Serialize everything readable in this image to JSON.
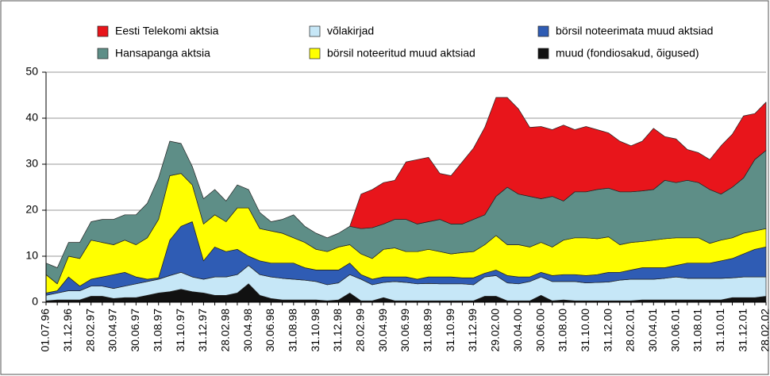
{
  "chart_data": {
    "type": "stacked_area",
    "categories": [
      "01.07.96",
      null,
      "31.12.96",
      null,
      "28.02.97",
      null,
      "30.04.97",
      null,
      "30.06.97",
      null,
      "31.08.97",
      null,
      "31.10.97",
      null,
      "31.12.97",
      null,
      "28.02.98",
      null,
      "30.04.98",
      null,
      "30.06.98",
      null,
      "31.08.98",
      null,
      "31.10.98",
      null,
      "31.12.98",
      null,
      "28.02.99",
      null,
      "30.04.99",
      null,
      "30.06.99",
      null,
      "31.08.99",
      null,
      "31.10.99",
      null,
      "31.12.99",
      null,
      "29.02.00",
      null,
      "30.04.00",
      null,
      "30.06.00",
      null,
      "31.08.00",
      null,
      "31.10.00",
      null,
      "31.12.00",
      null,
      "28.02.01",
      null,
      "30.04.01",
      null,
      "30.06.01",
      null,
      "31.08.01",
      null,
      "31.10.01",
      null,
      "31.12.01",
      null,
      "28.02.02"
    ],
    "series": [
      {
        "name": "muud (fondiosakud, õigused)",
        "color": "#111111",
        "values": [
          0.3,
          0.5,
          0.5,
          0.5,
          1.3,
          1.3,
          0.8,
          1,
          1,
          1.5,
          2,
          2.3,
          2.8,
          2.3,
          2,
          1.5,
          1.5,
          2,
          4,
          1.5,
          0.8,
          0.5,
          0.5,
          0.5,
          0.5,
          0.3,
          0.5,
          2,
          0.3,
          0.3,
          1,
          0.3,
          0.3,
          0.3,
          0.3,
          0.3,
          0.3,
          0.3,
          0.3,
          1.3,
          1.3,
          0.3,
          0.3,
          0.3,
          1.5,
          0.3,
          0.5,
          0.3,
          0.3,
          0.3,
          0.3,
          0.3,
          0.3,
          0.5,
          0.5,
          0.5,
          0.5,
          0.5,
          0.5,
          0.5,
          0.5,
          1,
          1,
          1,
          1.3
        ]
      },
      {
        "name": "võlakirjad",
        "color": "#c6e7f7",
        "values": [
          1.2,
          1.5,
          2,
          2,
          2.2,
          2.2,
          2.2,
          2.5,
          3,
          3,
          3,
          3.5,
          3.7,
          3.2,
          3,
          4,
          4,
          4,
          4,
          4.5,
          4.7,
          4.7,
          4.5,
          4.3,
          4,
          3.5,
          3.7,
          4,
          4.7,
          3.5,
          3.3,
          4.2,
          4,
          3.7,
          3.8,
          3.7,
          3.7,
          3.7,
          3.5,
          4.2,
          4.5,
          3.9,
          3.7,
          4.2,
          4,
          4.2,
          4,
          4.2,
          3.9,
          4,
          4.1,
          4.5,
          4.7,
          4.5,
          4.5,
          4.7,
          5,
          4.7,
          4.7,
          4.7,
          4.7,
          4.3,
          4.5,
          4.5,
          4.2
        ]
      },
      {
        "name": "börsil noteerimata muud aktsiad",
        "color": "#2f5cb4",
        "values": [
          0.5,
          0.5,
          3,
          1,
          1.5,
          2,
          3,
          3,
          1.5,
          0.5,
          0.3,
          7.7,
          10,
          12,
          4,
          6.5,
          5.5,
          5.5,
          2,
          3,
          3,
          3.3,
          3.5,
          2.7,
          2.5,
          3.2,
          2.8,
          2.5,
          1,
          1.2,
          1.2,
          1,
          1.2,
          1,
          1.4,
          1.5,
          1.5,
          1.3,
          1.5,
          0.8,
          1.2,
          1.6,
          1.5,
          1,
          1,
          1.3,
          1.5,
          1.5,
          1.6,
          1.7,
          2.1,
          1.7,
          2,
          2.5,
          2.5,
          2.3,
          2.5,
          3.3,
          3.3,
          3.3,
          3.8,
          4.2,
          5,
          6,
          6.5
        ]
      },
      {
        "name": "börsil noteeritud muud aktsiad",
        "color": "#ffff00",
        "values": [
          4,
          1.5,
          4.5,
          6,
          8.5,
          7.5,
          6.5,
          7,
          7,
          9,
          12.7,
          14,
          11.5,
          8,
          8,
          7,
          6.5,
          9,
          10.5,
          7,
          7,
          6.5,
          5.5,
          5.5,
          4.5,
          4,
          5,
          4,
          4.5,
          4.5,
          6,
          6.3,
          5.5,
          6,
          6,
          5.5,
          5,
          5.5,
          5.7,
          6.2,
          7.5,
          6.7,
          7,
          6.5,
          6.5,
          6.2,
          7.5,
          8,
          8.2,
          7.8,
          7.7,
          6,
          6,
          5.7,
          6,
          6.3,
          6,
          5.5,
          5.5,
          4.3,
          4.5,
          4.5,
          4.5,
          4,
          4
        ]
      },
      {
        "name": "Hansapanga aktsia",
        "color": "#5e8e87",
        "values": [
          2.5,
          3.5,
          3,
          3.5,
          4,
          5,
          5.5,
          5.5,
          6.5,
          7.5,
          9,
          7.5,
          6.5,
          4,
          5.5,
          5.5,
          4.5,
          5,
          4,
          3.5,
          2,
          3,
          5,
          3.5,
          3.5,
          3,
          3,
          4,
          5.5,
          6.7,
          5.5,
          6.2,
          7,
          6,
          6,
          7,
          6.5,
          6.2,
          7,
          6.5,
          8.5,
          12.5,
          11,
          11,
          9.5,
          11,
          8.5,
          10,
          10,
          10.7,
          10.6,
          11.5,
          11,
          11,
          11,
          12.7,
          12,
          12.5,
          12,
          11.7,
          10,
          11,
          12,
          15.5,
          17
        ]
      },
      {
        "name": "Eesti Telekomi aktsia",
        "color": "#e8151b",
        "values": [
          null,
          null,
          null,
          null,
          null,
          null,
          null,
          null,
          null,
          null,
          null,
          null,
          null,
          null,
          null,
          null,
          null,
          null,
          null,
          null,
          null,
          null,
          null,
          null,
          null,
          null,
          null,
          0,
          7.5,
          8.3,
          9,
          8.5,
          12.5,
          14,
          14,
          10,
          10.5,
          13.5,
          15.5,
          19,
          21.5,
          19.5,
          18.5,
          15,
          15.7,
          14.5,
          16.5,
          13.5,
          14.2,
          13,
          12,
          11,
          10,
          10.8,
          13.3,
          9.5,
          9.5,
          6.7,
          6.5,
          6.5,
          10.5,
          11.5,
          13.5,
          10,
          10.5
        ]
      }
    ],
    "ylim": [
      0,
      50
    ],
    "yticks": [
      0,
      10,
      20,
      30,
      40,
      50
    ],
    "grid": true
  }
}
